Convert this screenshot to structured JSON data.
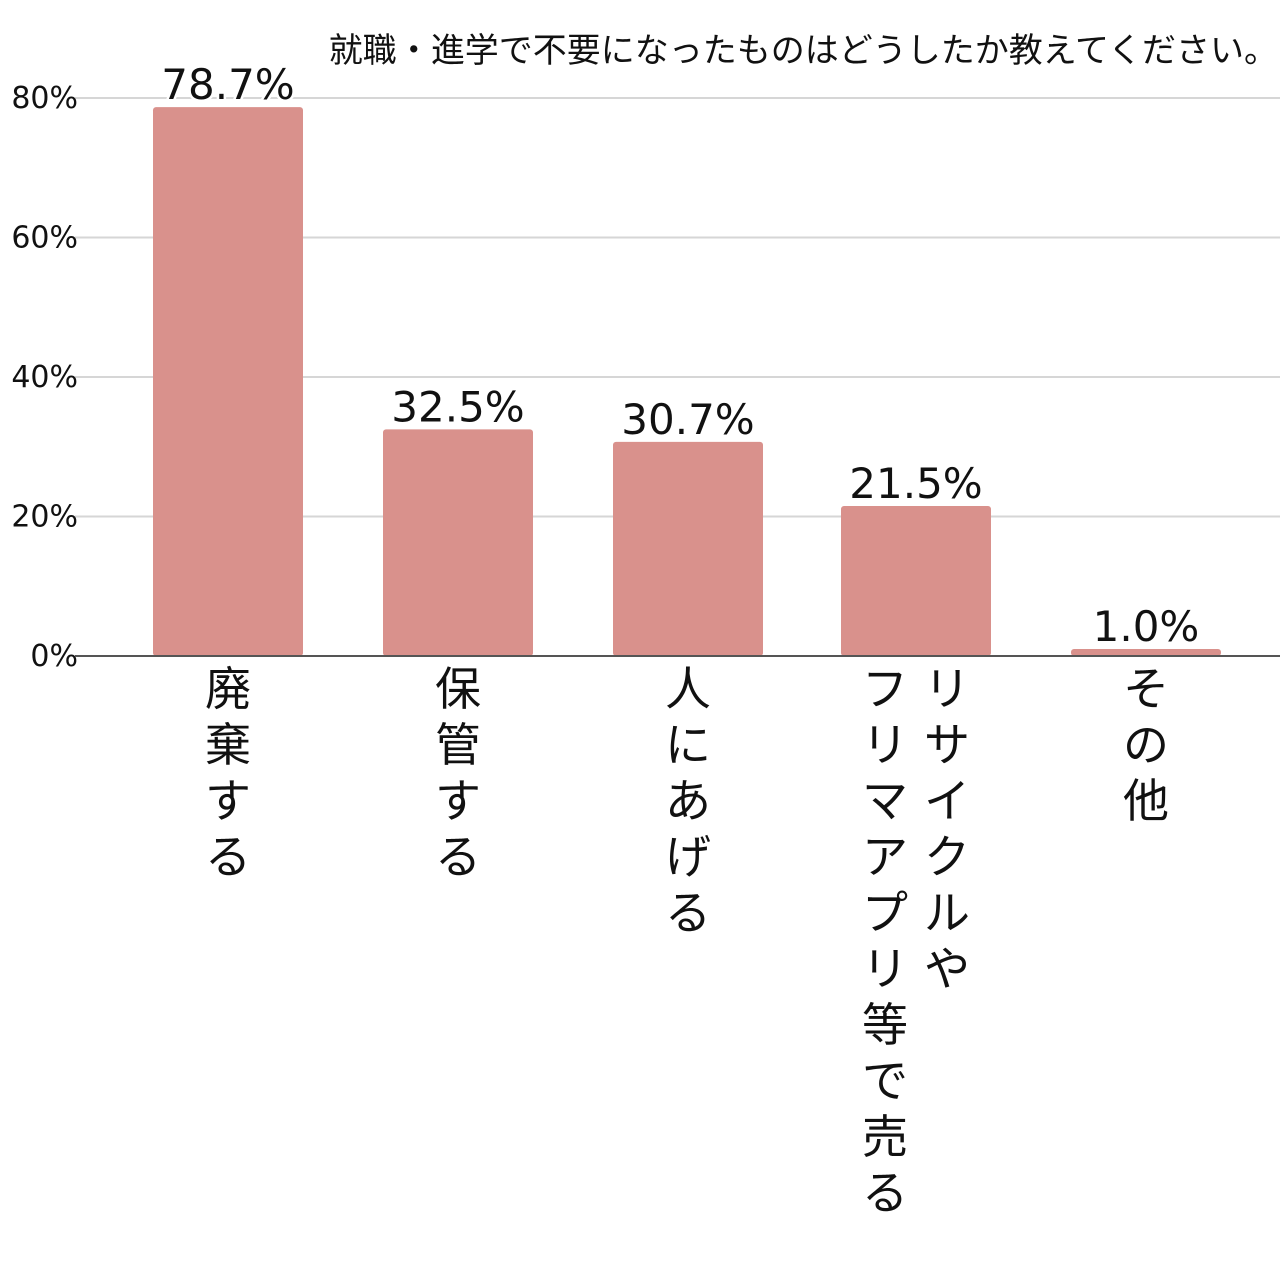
{
  "chart_data": {
    "type": "bar",
    "title": "就職・進学で不要になったものはどうしたか教えてください。",
    "categories": [
      "廃棄する",
      "保管する",
      "人にあげる",
      "リサイクルやフリマアプリ等で売る",
      "その他"
    ],
    "category_label_columns": [
      [
        "廃棄する"
      ],
      [
        "保管する"
      ],
      [
        "人にあげる"
      ],
      [
        "リサイクルや",
        "フリマアプリ等で売る"
      ],
      [
        "その他"
      ]
    ],
    "values": [
      78.7,
      32.5,
      30.7,
      21.5,
      1.0
    ],
    "data_labels": [
      "78.7%",
      "32.5%",
      "30.7%",
      "21.5%",
      "1.0%"
    ],
    "yticks": [
      0,
      20,
      40,
      60,
      80
    ],
    "ytick_labels": [
      "0%",
      "20%",
      "40%",
      "60%",
      "80%"
    ],
    "ylim": [
      0,
      80
    ],
    "xlabel": "",
    "ylabel": "",
    "grid": true,
    "legend": "none",
    "colors": {
      "bar": "#d9918c",
      "grid": "#d6d6d6",
      "axis": "#555555"
    }
  }
}
